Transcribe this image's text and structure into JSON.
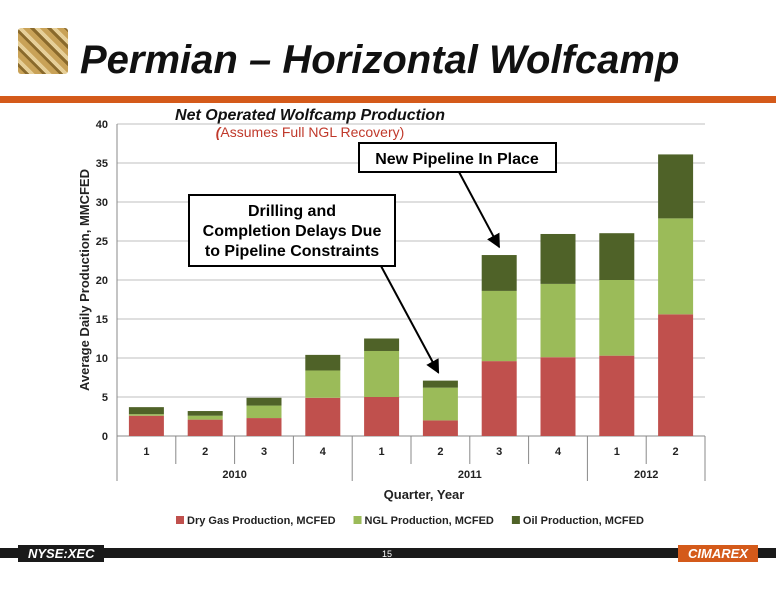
{
  "slide": {
    "title": "Permian – Horizontal Wolfcamp",
    "ticker": "NYSE:XEC",
    "page_number": "15",
    "brand": "CIMAREX",
    "accent_color": "#d45a1a"
  },
  "chart_data": {
    "type": "stacked_bar",
    "title": "Net Operated Wolfcamp Production",
    "subtitle_prefix": "(",
    "subtitle": "Assumes Full NGL Recovery)",
    "xlabel": "Quarter, Year",
    "ylabel": "Average Daily Production, MMCFED",
    "ylim": [
      0,
      40
    ],
    "yticks": [
      0,
      5,
      10,
      15,
      20,
      25,
      30,
      35,
      40
    ],
    "grid": true,
    "legend_position": "bottom",
    "categories": [
      "1",
      "2",
      "3",
      "4",
      "1",
      "2",
      "3",
      "4",
      "1",
      "2"
    ],
    "year_groups": [
      {
        "label": "2010",
        "count": 4
      },
      {
        "label": "2011",
        "count": 4
      },
      {
        "label": "2012",
        "count": 2
      }
    ],
    "series": [
      {
        "name": "Dry Gas Production, MCFED",
        "color": "#c0504d",
        "values": [
          2.6,
          2.1,
          2.3,
          4.9,
          5.0,
          2.0,
          9.6,
          10.1,
          10.3,
          15.6
        ]
      },
      {
        "name": "NGL Production, MCFED",
        "color": "#9bbb59",
        "values": [
          0.2,
          0.5,
          1.6,
          3.5,
          5.9,
          4.2,
          9.0,
          9.4,
          9.7,
          12.3
        ]
      },
      {
        "name": "Oil Production, MCFED",
        "color": "#4f6228",
        "values": [
          0.9,
          0.6,
          1.0,
          2.0,
          1.6,
          0.9,
          4.6,
          6.4,
          6.0,
          8.2
        ]
      }
    ],
    "annotations": [
      {
        "text": "Drilling and Completion Delays Due to Pipeline Constraints",
        "lines": [
          "Drilling and",
          "Completion Delays Due",
          "to Pipeline Constraints"
        ],
        "target_index": 5
      },
      {
        "text": "New Pipeline In Place",
        "lines": [
          "New Pipeline In Place"
        ],
        "target_index": 6
      }
    ]
  }
}
